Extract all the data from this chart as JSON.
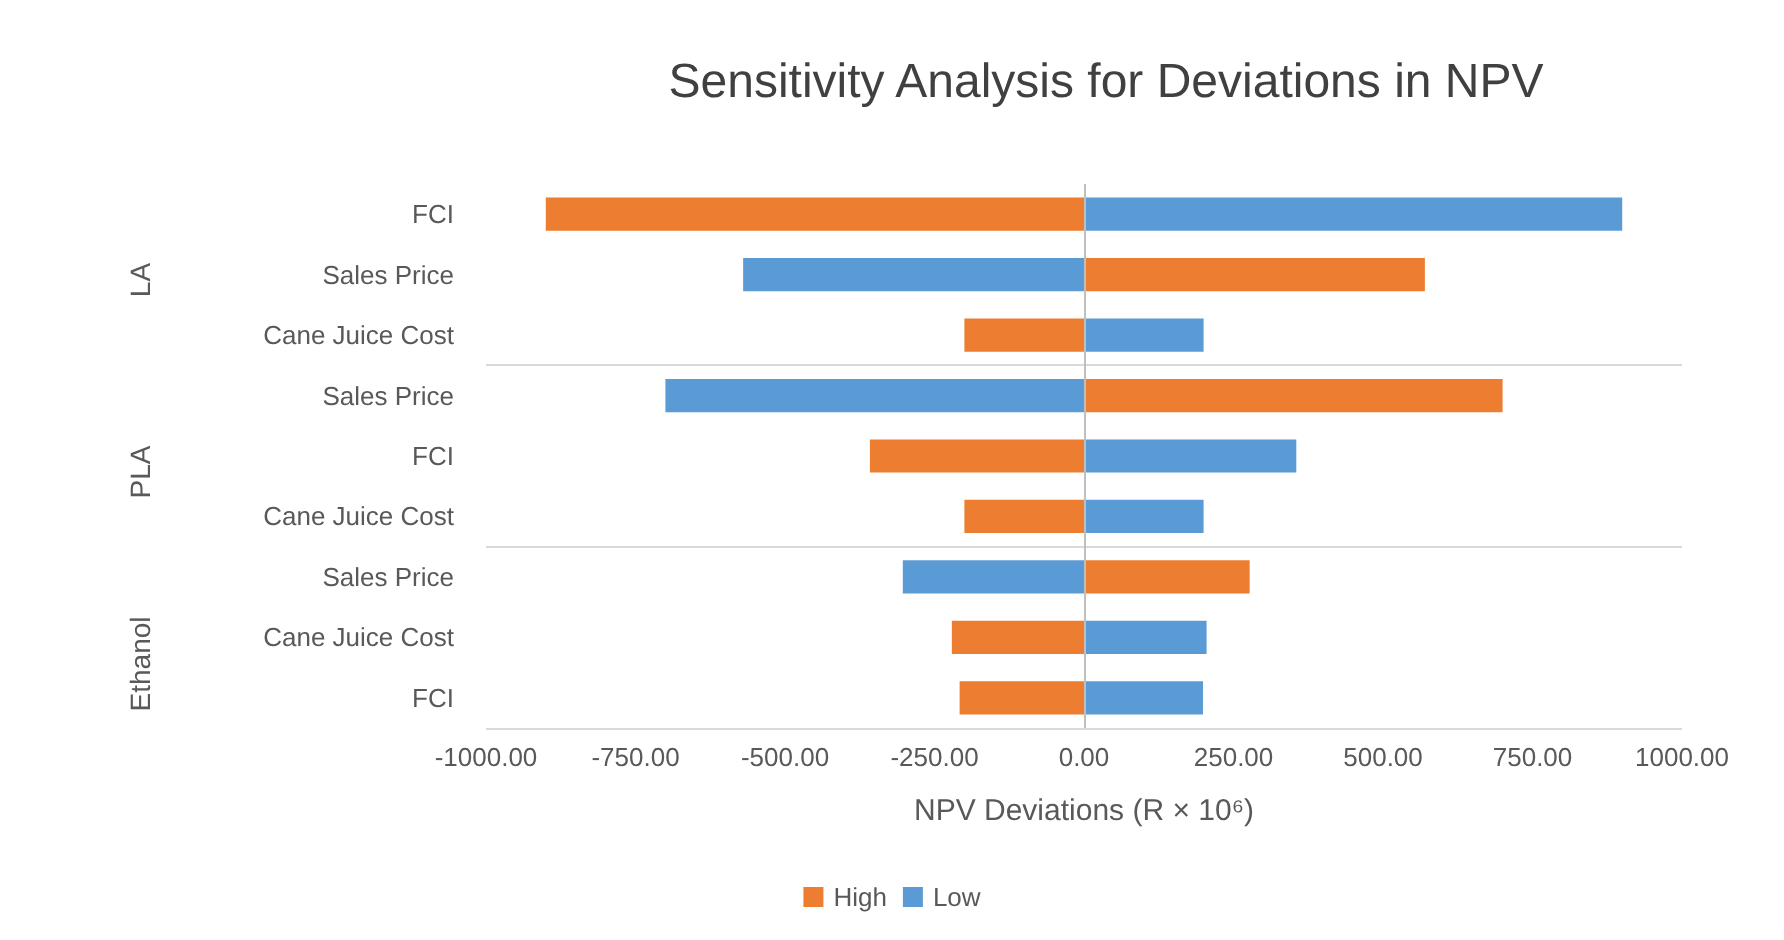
{
  "chart_data": {
    "type": "bar",
    "orientation": "horizontal",
    "title": "Sensitivity Analysis for Deviations in NPV",
    "xlabel": "NPV Deviations (R × 10⁶)",
    "categories": [
      "FCI",
      "Sales Price",
      "Cane Juice Cost",
      "Sales Price",
      "FCI",
      "Cane Juice Cost",
      "Sales Price",
      "Cane Juice Cost",
      "FCI"
    ],
    "series": [
      {
        "name": "High",
        "color": "#ed7d31",
        "values": [
          -900,
          570,
          -200,
          700,
          -358,
          -200,
          277,
          -221,
          -208
        ]
      },
      {
        "name": "Low",
        "color": "#5b9bd5",
        "values": [
          900,
          -570,
          200,
          -700,
          355,
          200,
          -303,
          205,
          199
        ]
      }
    ],
    "xlim": [
      -1000,
      1000
    ],
    "xticks": [
      {
        "value": -1000,
        "label": "-1000.00"
      },
      {
        "value": -750,
        "label": "-750.00"
      },
      {
        "value": -500,
        "label": "-500.00"
      },
      {
        "value": -250,
        "label": "-250.00"
      },
      {
        "value": 0,
        "label": "0.00"
      },
      {
        "value": 250,
        "label": "250.00"
      },
      {
        "value": 500,
        "label": "500.00"
      },
      {
        "value": 750,
        "label": "750.00"
      },
      {
        "value": 1000,
        "label": "1000.00"
      }
    ],
    "annotations": [
      "LA",
      "PLA",
      "Ethanol"
    ],
    "stacked": true,
    "grid": false,
    "legend": "bottom"
  }
}
